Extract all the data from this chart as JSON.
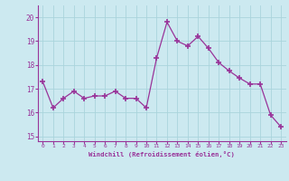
{
  "x": [
    0,
    1,
    2,
    3,
    4,
    5,
    6,
    7,
    8,
    9,
    10,
    11,
    12,
    13,
    14,
    15,
    16,
    17,
    18,
    19,
    20,
    21,
    22,
    23
  ],
  "y": [
    17.3,
    16.2,
    16.6,
    16.9,
    16.6,
    16.7,
    16.7,
    16.9,
    16.6,
    16.6,
    16.2,
    18.3,
    19.8,
    19.0,
    18.8,
    19.2,
    18.7,
    18.1,
    17.75,
    17.45,
    17.2,
    17.2,
    15.9,
    15.4
  ],
  "line_color": "#993399",
  "marker": "+",
  "marker_color": "#993399",
  "bg_color": "#cce9f0",
  "grid_color": "#aad4dc",
  "xlabel": "Windchill (Refroidissement éolien,°C)",
  "xlabel_color": "#993399",
  "tick_color": "#993399",
  "yticks": [
    15,
    16,
    17,
    18,
    19,
    20
  ],
  "xtick_labels": [
    "0",
    "1",
    "2",
    "3",
    "4",
    "5",
    "6",
    "7",
    "8",
    "9",
    "10",
    "11",
    "12",
    "13",
    "14",
    "15",
    "16",
    "17",
    "18",
    "19",
    "20",
    "21",
    "22",
    "23"
  ],
  "ylim": [
    14.8,
    20.5
  ],
  "xlim": [
    -0.5,
    23.5
  ]
}
